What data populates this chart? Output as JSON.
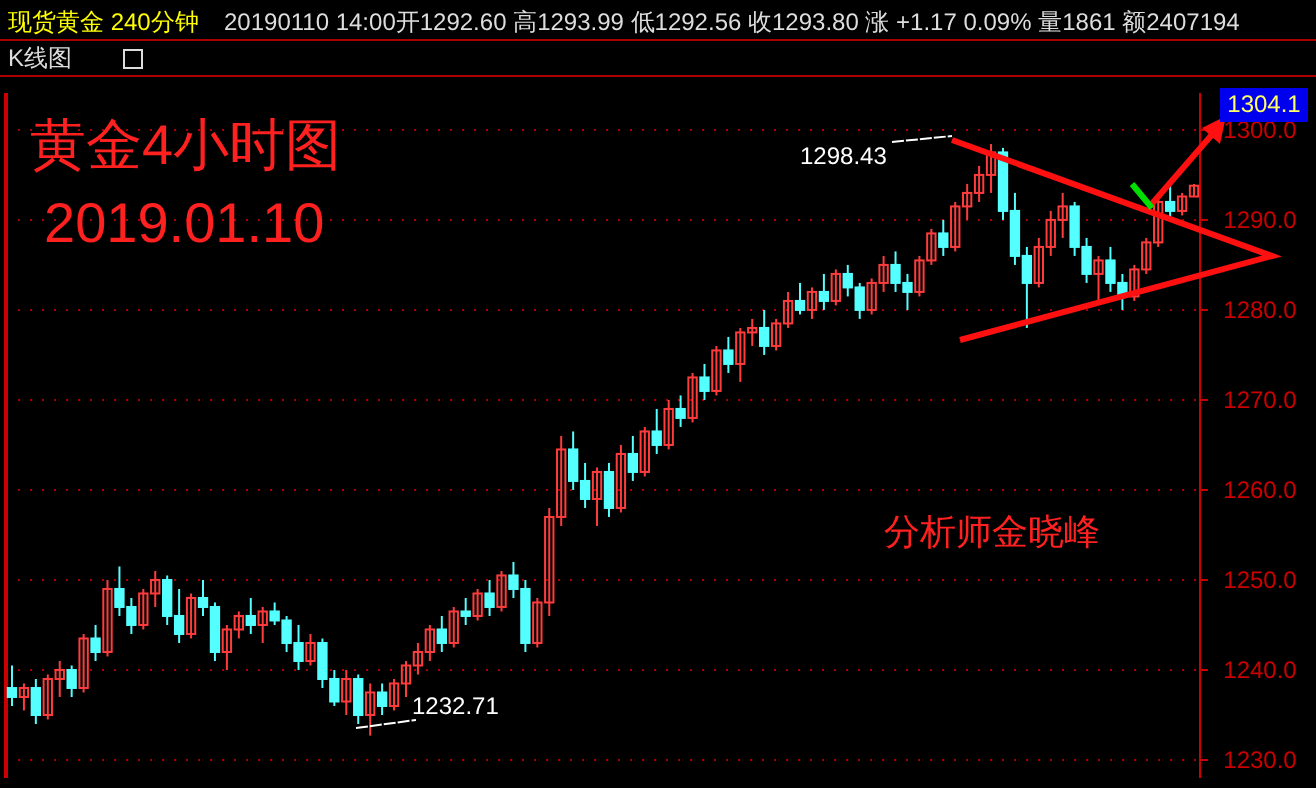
{
  "chart_data": {
    "type": "candlestick",
    "title": "黄金4小时图",
    "subtitle": "2019.01.10",
    "annotations": [
      "现货黄金 240分钟",
      "20190110 14:00开1292.60 高1293.99 低1292.56 收1293.80 涨 +1.17 0.09% 量1861 额2407194",
      "K线图",
      "1298.43",
      "1232.71",
      "1304.1",
      "分析师金晓峰"
    ],
    "categories": [
      null,
      null,
      null,
      null,
      null,
      null,
      null,
      null,
      null,
      null,
      null,
      null,
      null,
      null,
      null,
      null,
      null,
      null,
      null,
      null,
      null,
      null,
      null,
      null,
      null,
      null,
      null,
      null,
      null,
      null,
      null,
      null,
      null,
      null,
      null,
      null,
      null,
      null,
      null,
      null,
      null,
      null,
      null,
      null,
      null,
      null,
      null,
      null,
      null,
      null,
      null,
      null,
      null,
      null,
      null,
      null,
      null,
      null,
      null,
      null,
      null,
      null,
      null,
      null,
      null,
      null,
      null,
      null,
      null,
      null,
      null,
      null,
      null,
      null,
      null,
      null,
      null,
      null,
      null,
      null,
      null,
      null,
      null,
      null,
      null,
      null,
      null,
      null,
      null,
      null,
      null,
      null,
      null,
      null,
      null,
      null,
      null,
      null,
      null,
      null
    ],
    "ohlc": [
      [
        1238,
        1240.5,
        1236,
        1237
      ],
      [
        1237,
        1238.5,
        1235.5,
        1238
      ],
      [
        1238,
        1239,
        1234,
        1235
      ],
      [
        1235,
        1239.5,
        1234.5,
        1239
      ],
      [
        1239,
        1241,
        1237,
        1240
      ],
      [
        1240,
        1240.5,
        1237,
        1238
      ],
      [
        1238,
        1244,
        1237.5,
        1243.5
      ],
      [
        1243.5,
        1245,
        1241,
        1242
      ],
      [
        1242,
        1250,
        1241.5,
        1249
      ],
      [
        1249,
        1251.5,
        1246,
        1247
      ],
      [
        1247,
        1248,
        1244,
        1245
      ],
      [
        1245,
        1249,
        1244.5,
        1248.5
      ],
      [
        1248.5,
        1251,
        1247,
        1250
      ],
      [
        1250,
        1250.5,
        1245,
        1246
      ],
      [
        1246,
        1249,
        1243,
        1244
      ],
      [
        1244,
        1248.5,
        1243.5,
        1248
      ],
      [
        1248,
        1250,
        1246,
        1247
      ],
      [
        1247,
        1247.5,
        1241,
        1242
      ],
      [
        1242,
        1245,
        1240,
        1244.5
      ],
      [
        1244.5,
        1246.5,
        1243.5,
        1246
      ],
      [
        1246,
        1248,
        1244,
        1245
      ],
      [
        1245,
        1247,
        1243,
        1246.5
      ],
      [
        1246.5,
        1247.5,
        1245,
        1245.5
      ],
      [
        1245.5,
        1246,
        1242,
        1243
      ],
      [
        1243,
        1245,
        1240,
        1241
      ],
      [
        1241,
        1244,
        1240.5,
        1243
      ],
      [
        1243,
        1243.5,
        1238,
        1239
      ],
      [
        1239,
        1240,
        1236,
        1236.5
      ],
      [
        1236.5,
        1240,
        1235,
        1239
      ],
      [
        1239,
        1239.5,
        1234,
        1235
      ],
      [
        1235,
        1238.5,
        1232.71,
        1237.5
      ],
      [
        1237.5,
        1238.5,
        1235,
        1236
      ],
      [
        1236,
        1239,
        1235.5,
        1238.5
      ],
      [
        1238.5,
        1241,
        1237,
        1240.5
      ],
      [
        1240.5,
        1243,
        1239.5,
        1242
      ],
      [
        1242,
        1245,
        1241,
        1244.5
      ],
      [
        1244.5,
        1246,
        1242,
        1243
      ],
      [
        1243,
        1247,
        1242.5,
        1246.5
      ],
      [
        1246.5,
        1248,
        1245,
        1246
      ],
      [
        1246,
        1249,
        1245.5,
        1248.5
      ],
      [
        1248.5,
        1250,
        1246,
        1247
      ],
      [
        1247,
        1251,
        1246.5,
        1250.5
      ],
      [
        1250.5,
        1252,
        1248,
        1249
      ],
      [
        1249,
        1250,
        1242,
        1243
      ],
      [
        1243,
        1248,
        1242.5,
        1247.5
      ],
      [
        1247.5,
        1258,
        1246,
        1257
      ],
      [
        1257,
        1266,
        1256,
        1264.5
      ],
      [
        1264.5,
        1266.5,
        1260,
        1261
      ],
      [
        1261,
        1263,
        1258,
        1259
      ],
      [
        1259,
        1262.5,
        1256,
        1262
      ],
      [
        1262,
        1263,
        1257,
        1258
      ],
      [
        1258,
        1265,
        1257.5,
        1264
      ],
      [
        1264,
        1266,
        1261,
        1262
      ],
      [
        1262,
        1267,
        1261.5,
        1266.5
      ],
      [
        1266.5,
        1269,
        1264,
        1265
      ],
      [
        1265,
        1270,
        1264.5,
        1269
      ],
      [
        1269,
        1270.5,
        1267,
        1268
      ],
      [
        1268,
        1273,
        1267.5,
        1272.5
      ],
      [
        1272.5,
        1274,
        1270,
        1271
      ],
      [
        1271,
        1276,
        1270.5,
        1275.5
      ],
      [
        1275.5,
        1277,
        1273,
        1274
      ],
      [
        1274,
        1278,
        1272,
        1277.5
      ],
      [
        1277.5,
        1279,
        1276,
        1278
      ],
      [
        1278,
        1280,
        1275,
        1276
      ],
      [
        1276,
        1279,
        1275.5,
        1278.5
      ],
      [
        1278.5,
        1282,
        1278,
        1281
      ],
      [
        1281,
        1283,
        1279.5,
        1280
      ],
      [
        1280,
        1282.5,
        1279,
        1282
      ],
      [
        1282,
        1284,
        1280,
        1281
      ],
      [
        1281,
        1284.5,
        1280.5,
        1284
      ],
      [
        1284,
        1285,
        1281.5,
        1282.5
      ],
      [
        1282.5,
        1283,
        1279,
        1280
      ],
      [
        1280,
        1283.5,
        1279.5,
        1283
      ],
      [
        1283,
        1286,
        1282,
        1285
      ],
      [
        1285,
        1286.5,
        1282,
        1283
      ],
      [
        1283,
        1284,
        1280,
        1282
      ],
      [
        1282,
        1286,
        1281.5,
        1285.5
      ],
      [
        1285.5,
        1289,
        1285,
        1288.5
      ],
      [
        1288.5,
        1290,
        1286,
        1287
      ],
      [
        1287,
        1292,
        1286.5,
        1291.5
      ],
      [
        1291.5,
        1294,
        1290,
        1293
      ],
      [
        1293,
        1296,
        1292,
        1295
      ],
      [
        1295,
        1298.43,
        1293,
        1297.5
      ],
      [
        1297.5,
        1298,
        1290,
        1291
      ],
      [
        1291,
        1293,
        1285,
        1286
      ],
      [
        1286,
        1287,
        1278,
        1283
      ],
      [
        1283,
        1288,
        1282.5,
        1287
      ],
      [
        1287,
        1291,
        1286,
        1290
      ],
      [
        1290,
        1293,
        1288,
        1291.5
      ],
      [
        1291.5,
        1292,
        1286,
        1287
      ],
      [
        1287,
        1288,
        1283,
        1284
      ],
      [
        1284,
        1286,
        1281,
        1285.5
      ],
      [
        1285.5,
        1287,
        1282,
        1283
      ],
      [
        1283,
        1284,
        1280,
        1281.5
      ],
      [
        1281.5,
        1285,
        1281,
        1284.5
      ],
      [
        1284.5,
        1288,
        1284,
        1287.5
      ],
      [
        1287.5,
        1293,
        1287,
        1292
      ],
      [
        1292,
        1294,
        1290,
        1291
      ],
      [
        1291,
        1293,
        1290.5,
        1292.6
      ],
      [
        1292.6,
        1293.99,
        1292.56,
        1293.8
      ]
    ],
    "ylim": [
      1228,
      1304.1
    ],
    "yticks": [
      {
        "value": 1230,
        "label": "1230.0"
      },
      {
        "value": 1240,
        "label": "1240.0"
      },
      {
        "value": 1250,
        "label": "1250.0"
      },
      {
        "value": 1260,
        "label": "1260.0"
      },
      {
        "value": 1270,
        "label": "1270.0"
      },
      {
        "value": 1280,
        "label": "1280.0"
      },
      {
        "value": 1290,
        "label": "1290.0"
      },
      {
        "value": 1300,
        "label": "1300.0"
      }
    ],
    "grid": "y"
  }
}
